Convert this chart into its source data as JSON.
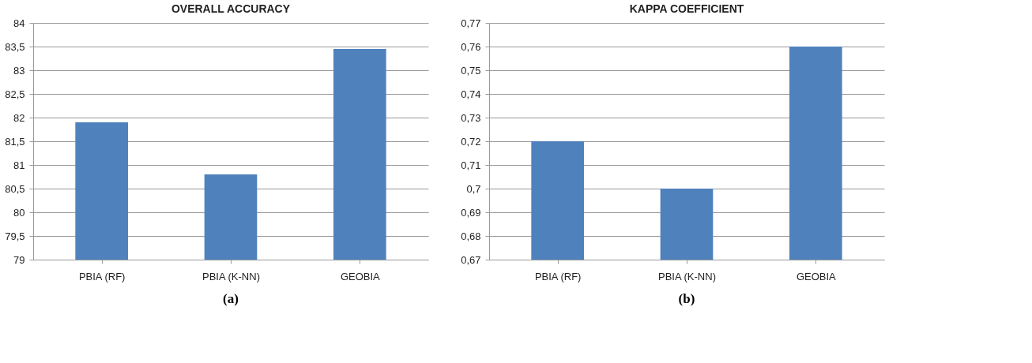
{
  "chart_data": [
    {
      "type": "bar",
      "title": "OVERALL ACCURACY",
      "categories": [
        "PBIA (RF)",
        "PBIA (K-NN)",
        "GEOBIA"
      ],
      "values": [
        81.9,
        80.8,
        83.45
      ],
      "color": "#4f81bd",
      "ylim": [
        79,
        84
      ],
      "yticks": [
        79,
        {
          "value": 79.5,
          "label": "79,5"
        },
        80,
        {
          "value": 80.5,
          "label": "80,5"
        },
        81,
        {
          "value": 81.5,
          "label": "81,5"
        },
        82,
        {
          "value": 82.5,
          "label": "82,5"
        },
        83,
        {
          "value": 83.5,
          "label": "83,5"
        },
        84
      ],
      "grid": "y",
      "annotations": [
        "(a)"
      ]
    },
    {
      "type": "bar",
      "title": "KAPPA COEFFICIENT",
      "categories": [
        "PBIA (RF)",
        "PBIA (K-NN)",
        "GEOBIA"
      ],
      "values": [
        0.72,
        0.7,
        0.76
      ],
      "color": "#4f81bd",
      "ylim": [
        0.67,
        0.77
      ],
      "yticks": [
        {
          "value": 0.67,
          "label": "0,67"
        },
        {
          "value": 0.68,
          "label": "0,68"
        },
        {
          "value": 0.69,
          "label": "0,69"
        },
        {
          "value": 0.7,
          "label": "0,7"
        },
        {
          "value": 0.71,
          "label": "0,71"
        },
        {
          "value": 0.72,
          "label": "0,72"
        },
        {
          "value": 0.73,
          "label": "0,73"
        },
        {
          "value": 0.74,
          "label": "0,74"
        },
        {
          "value": 0.75,
          "label": "0,75"
        },
        {
          "value": 0.76,
          "label": "0,76"
        },
        {
          "value": 0.77,
          "label": "0,77"
        }
      ],
      "grid": "y",
      "annotations": [
        "(b)"
      ]
    }
  ]
}
